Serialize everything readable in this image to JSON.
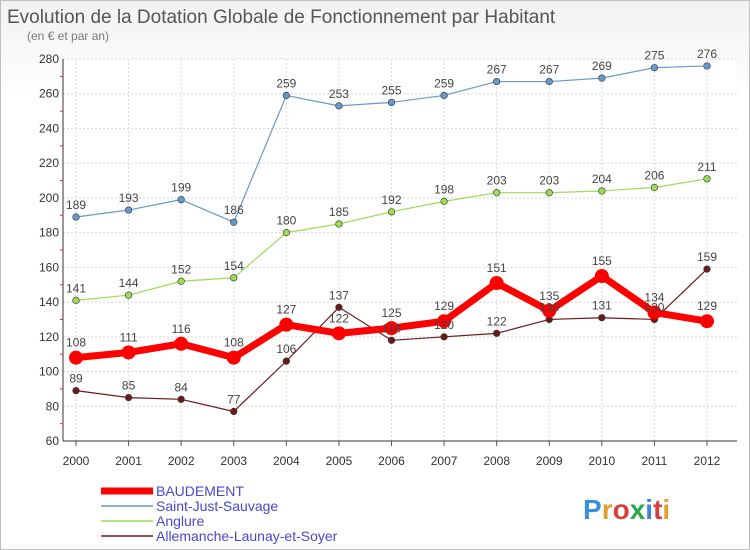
{
  "chart_data": {
    "type": "line",
    "title": "Evolution de la Dotation Globale de Fonctionnement par Habitant",
    "subtitle": "(en € et par an)",
    "x": [
      "2000",
      "2001",
      "2002",
      "2003",
      "2004",
      "2005",
      "2006",
      "2007",
      "2008",
      "2009",
      "2010",
      "2011",
      "2012"
    ],
    "ylim": [
      60,
      280
    ],
    "yticks": [
      60,
      80,
      100,
      120,
      140,
      160,
      180,
      200,
      220,
      240,
      260,
      280
    ],
    "grid": true,
    "legend_position": "bottom-left",
    "series": [
      {
        "name": "Allemanche-Launay-et-Soyer",
        "color": "#6b1a1a",
        "values": [
          89,
          85,
          84,
          77,
          106,
          137,
          118,
          120,
          122,
          130,
          131,
          130,
          159
        ]
      },
      {
        "name": "Anglure",
        "color": "#99dd55",
        "values": [
          141,
          144,
          152,
          154,
          180,
          185,
          192,
          198,
          203,
          203,
          204,
          206,
          211
        ]
      },
      {
        "name": "Saint-Just-Sauvage",
        "color": "#6699cc",
        "values": [
          189,
          193,
          199,
          186,
          259,
          253,
          255,
          259,
          267,
          267,
          269,
          275,
          276
        ]
      },
      {
        "name": "BAUDEMENT",
        "color": "#ff0000",
        "values": [
          108,
          111,
          116,
          108,
          127,
          122,
          125,
          129,
          151,
          135,
          155,
          134,
          129
        ]
      }
    ],
    "legend_order": [
      "BAUDEMENT",
      "Saint-Just-Sauvage",
      "Anglure",
      "Allemanche-Launay-et-Soyer"
    ]
  },
  "logo": {
    "text": "Proxiti",
    "letter_colors": [
      "#3a8fd8",
      "#e0a030",
      "#d84040",
      "#2aa84a",
      "#4080e0",
      "#d84040",
      "#e0a030"
    ]
  }
}
